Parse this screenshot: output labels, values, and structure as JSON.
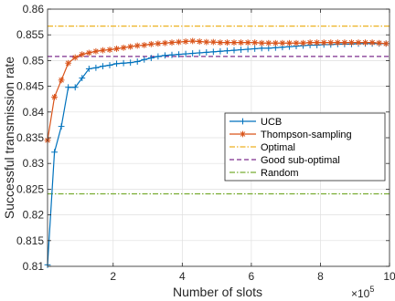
{
  "chart_data": {
    "type": "line",
    "xlabel": "Number of slots",
    "ylabel": "Successful transmission rate",
    "x_multiplier_label": "×10",
    "x_multiplier_exp": "5",
    "xlim": [
      0.1,
      10
    ],
    "ylim": [
      0.81,
      0.86
    ],
    "xticks": [
      2,
      4,
      6,
      8,
      10
    ],
    "yticks": [
      0.81,
      0.815,
      0.82,
      0.825,
      0.83,
      0.835,
      0.84,
      0.845,
      0.85,
      0.855,
      0.86
    ],
    "ytick_labels": [
      "0.81",
      "0.815",
      "0.82",
      "0.825",
      "0.83",
      "0.835",
      "0.84",
      "0.845",
      "0.85",
      "0.855",
      "0.86"
    ],
    "grid": true,
    "legend_position": "center-right",
    "series": [
      {
        "name": "UCB",
        "color": "#0072BD",
        "style": "solid",
        "marker": "plus",
        "x": [
          0.1,
          0.3,
          0.5,
          0.7,
          0.9,
          1.1,
          1.3,
          1.5,
          1.7,
          1.9,
          2.1,
          2.3,
          2.5,
          2.7,
          2.9,
          3.1,
          3.3,
          3.5,
          3.7,
          3.9,
          4.1,
          4.3,
          4.5,
          4.7,
          4.9,
          5.1,
          5.3,
          5.5,
          5.7,
          5.9,
          6.1,
          6.3,
          6.5,
          6.7,
          6.9,
          7.1,
          7.3,
          7.5,
          7.7,
          7.9,
          8.1,
          8.3,
          8.5,
          8.7,
          8.9,
          9.1,
          9.3,
          9.5,
          9.7,
          9.9
        ],
        "y": [
          0.8103,
          0.8322,
          0.8372,
          0.8448,
          0.8448,
          0.8466,
          0.8484,
          0.8486,
          0.8489,
          0.8491,
          0.8494,
          0.8495,
          0.8496,
          0.8498,
          0.8502,
          0.8505,
          0.8508,
          0.851,
          0.8511,
          0.8512,
          0.8513,
          0.8514,
          0.8515,
          0.8516,
          0.8517,
          0.8518,
          0.8519,
          0.852,
          0.8521,
          0.8522,
          0.8523,
          0.8524,
          0.8524,
          0.8525,
          0.8526,
          0.8527,
          0.8528,
          0.8529,
          0.853,
          0.853,
          0.8531,
          0.8531,
          0.8532,
          0.8532,
          0.8532,
          0.8533,
          0.8533,
          0.8533,
          0.8533,
          0.8533
        ]
      },
      {
        "name": "Thompson-sampling",
        "color": "#D95319",
        "style": "solid",
        "marker": "asterisk",
        "x": [
          0.1,
          0.3,
          0.5,
          0.7,
          0.9,
          1.1,
          1.3,
          1.5,
          1.7,
          1.9,
          2.1,
          2.3,
          2.5,
          2.7,
          2.9,
          3.1,
          3.3,
          3.5,
          3.7,
          3.9,
          4.1,
          4.3,
          4.5,
          4.7,
          4.9,
          5.1,
          5.3,
          5.5,
          5.7,
          5.9,
          6.1,
          6.3,
          6.5,
          6.7,
          6.9,
          7.1,
          7.3,
          7.5,
          7.7,
          7.9,
          8.1,
          8.3,
          8.5,
          8.7,
          8.9,
          9.1,
          9.3,
          9.5,
          9.7,
          9.9
        ],
        "y": [
          0.8345,
          0.8429,
          0.8462,
          0.8495,
          0.8506,
          0.8512,
          0.8515,
          0.8518,
          0.852,
          0.8521,
          0.8523,
          0.8525,
          0.8527,
          0.8529,
          0.853,
          0.8532,
          0.8533,
          0.8534,
          0.8535,
          0.8536,
          0.8537,
          0.8538,
          0.8537,
          0.8536,
          0.8536,
          0.8535,
          0.8535,
          0.8535,
          0.8535,
          0.8535,
          0.8535,
          0.8534,
          0.8534,
          0.8534,
          0.8534,
          0.8534,
          0.8534,
          0.8534,
          0.8535,
          0.8535,
          0.8535,
          0.8535,
          0.8535,
          0.8535,
          0.8535,
          0.8535,
          0.8535,
          0.8535,
          0.8534,
          0.8533
        ]
      },
      {
        "name": "Optimal",
        "color": "#EDB120",
        "style": "dashdot",
        "marker": "none",
        "x": [
          0.1,
          10
        ],
        "y": [
          0.8567,
          0.8567
        ]
      },
      {
        "name": "Good sub-optimal",
        "color": "#7E2F8E",
        "style": "dashed",
        "marker": "none",
        "x": [
          0.1,
          10
        ],
        "y": [
          0.8508,
          0.8508
        ]
      },
      {
        "name": "Random",
        "color": "#77AC30",
        "style": "dashdot",
        "marker": "none",
        "x": [
          0.1,
          10
        ],
        "y": [
          0.8241,
          0.8241
        ]
      }
    ]
  }
}
